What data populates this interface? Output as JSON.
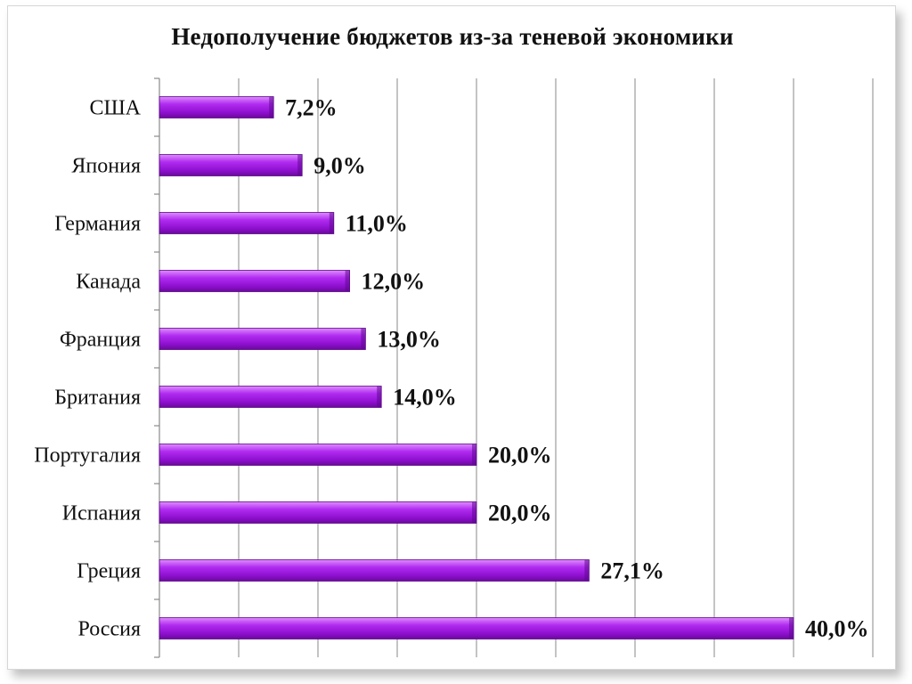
{
  "chart_data": {
    "type": "bar",
    "orientation": "horizontal",
    "title": "Недополучение бюджетов из-за теневой экономики",
    "xlabel": "",
    "ylabel": "",
    "categories": [
      "США",
      "Япония",
      "Германия",
      "Канада",
      "Франция",
      "Британия",
      "Португалия",
      "Испания",
      "Греция",
      "Россия"
    ],
    "values": [
      7.2,
      9.0,
      11.0,
      12.0,
      13.0,
      14.0,
      20.0,
      20.0,
      27.1,
      40.0
    ],
    "value_labels": [
      "7,2%",
      "9,0%",
      "11,0%",
      "12,0%",
      "13,0%",
      "14,0%",
      "20,0%",
      "20,0%",
      "27,1%",
      "40,0%"
    ],
    "xlim": [
      0,
      45
    ],
    "grid": true,
    "grid_step": 5,
    "bar_color": "#a020e0",
    "legend": "none"
  }
}
